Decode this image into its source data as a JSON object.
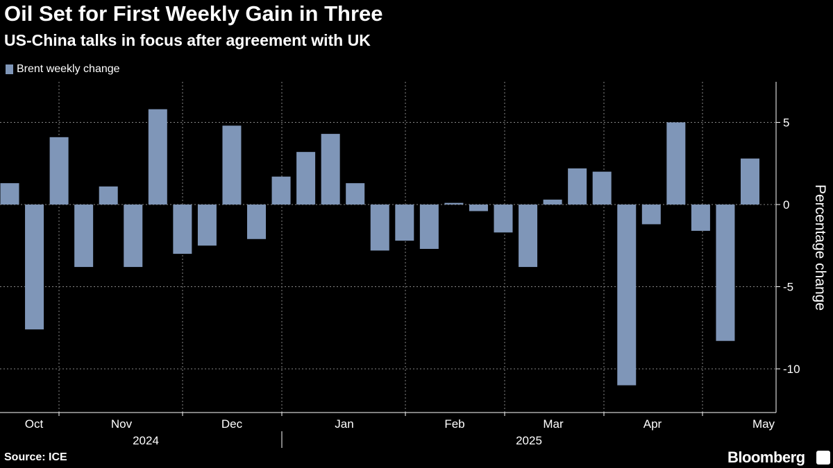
{
  "title": "Oil Set for First Weekly Gain in Three",
  "subtitle": "US-China talks in focus after agreement with UK",
  "source": "Source: ICE",
  "brand": "Bloomberg",
  "colors": {
    "bar": "#7f96b8",
    "background": "#000000"
  },
  "chart_data": {
    "type": "bar",
    "legend": [
      "Brent weekly change"
    ],
    "legend_position": "top-left",
    "ylabel": "Percentage change",
    "y_ticks": [
      5,
      0,
      -5,
      -10
    ],
    "ylim": [
      -12.5,
      7.5
    ],
    "grid": true,
    "x_month_labels": [
      "Oct",
      "Nov",
      "Dec",
      "Jan",
      "Feb",
      "Mar",
      "Apr",
      "May"
    ],
    "x_year_labels": [
      "2024",
      "2025"
    ],
    "series": [
      {
        "name": "Brent weekly change",
        "values": [
          1.3,
          -7.6,
          4.1,
          -3.8,
          1.1,
          -3.8,
          5.8,
          -3.0,
          -2.5,
          4.8,
          -2.1,
          1.7,
          3.2,
          4.3,
          1.3,
          -2.8,
          -2.2,
          -2.7,
          0.1,
          -0.4,
          -1.7,
          -3.8,
          0.3,
          2.2,
          2.0,
          -11.0,
          -1.2,
          5.0,
          -1.6,
          -8.3,
          2.8
        ]
      }
    ]
  }
}
